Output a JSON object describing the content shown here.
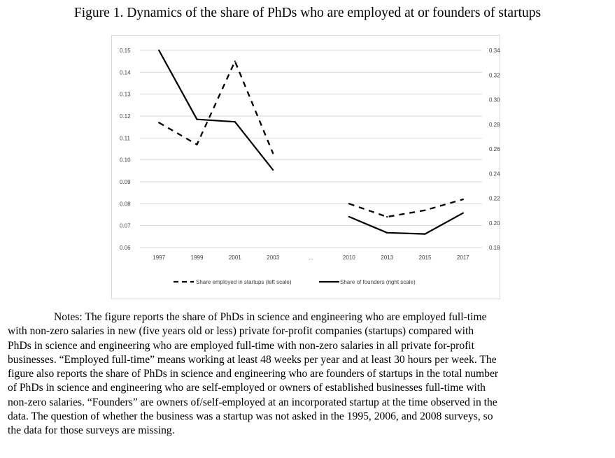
{
  "figure": {
    "title": "Figure 1. Dynamics of the share of PhDs who are employed at or founders of startups"
  },
  "chart_data": {
    "type": "line",
    "categories": [
      "1997",
      "1999",
      "2001",
      "2003",
      "...",
      "2010",
      "2013",
      "2015",
      "2017"
    ],
    "left_axis": {
      "ylim": [
        0.06,
        0.15
      ],
      "ticks": [
        "0.15",
        "0.14",
        "0.13",
        "0.12",
        "0.11",
        "0.10",
        "0.09",
        "0.08",
        "0.07",
        "0.06"
      ]
    },
    "right_axis": {
      "ylim": [
        0.18,
        0.34
      ],
      "ticks": [
        "0.34",
        "0.32",
        "0.30",
        "0.28",
        "0.26",
        "0.24",
        "0.22",
        "0.20",
        "0.18"
      ]
    },
    "series": [
      {
        "name": "Share employed in startups (left scale)",
        "axis": "left",
        "style": "dashed",
        "color": "#000000",
        "segments": [
          {
            "categories": [
              "1997",
              "1999",
              "2001",
              "2003"
            ],
            "values": [
              0.117,
              0.107,
              0.145,
              0.103
            ]
          },
          {
            "categories": [
              "2010",
              "2013",
              "2015",
              "2017"
            ],
            "values": [
              0.08,
              0.074,
              0.077,
              0.082
            ]
          }
        ]
      },
      {
        "name": "Share of founders (right scale)",
        "axis": "right",
        "style": "solid",
        "color": "#000000",
        "segments": [
          {
            "categories": [
              "1997",
              "1999",
              "2001",
              "2003"
            ],
            "values": [
              0.34,
              0.284,
              0.282,
              0.243
            ]
          },
          {
            "categories": [
              "2010",
              "2013",
              "2015",
              "2017"
            ],
            "values": [
              0.205,
              0.192,
              0.191,
              0.208
            ]
          }
        ]
      }
    ],
    "legend": {
      "position": "bottom",
      "entries": [
        "Share employed in startups (left scale)",
        "Share of founders (right scale)"
      ]
    }
  },
  "notes": {
    "lines": [
      "Notes: The figure reports the share of PhDs in science and engineering who are employed full-time",
      "with non-zero salaries in new (five years old or less) private for-profit companies (startups) compared with",
      "PhDs in science and engineering who are employed full-time with non-zero salaries in all private for-profit",
      "businesses. “Employed full-time” means working at least 48 weeks per year and at least 30 hours per week. The",
      "figure also reports the share of PhDs in science and engineering who are founders of startups in the total number",
      "of PhDs in science and engineering who are self-employed or owners of established businesses full-time with",
      "non-zero salaries. “Founders” are owners of/self-employed at an incorporated startup at the time observed in the",
      "data. The question of whether the business was a startup was not asked in the 1995, 2006, and 2008 surveys, so",
      "the data for those surveys are missing."
    ]
  }
}
